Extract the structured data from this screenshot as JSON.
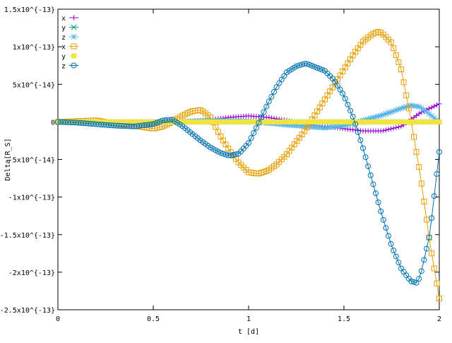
{
  "chart_data": {
    "type": "line",
    "title": "",
    "xlabel": "t [d]",
    "ylabel": "Delta[R_S]",
    "xlim": [
      0,
      2
    ],
    "ylim": [
      -2.5e-13,
      1.5e-13
    ],
    "grid": false,
    "legend_position": "top-left",
    "xticks": [
      {
        "value": 0,
        "label": "0"
      },
      {
        "value": 0.5,
        "label": "0.5"
      },
      {
        "value": 1,
        "label": "1"
      },
      {
        "value": 1.5,
        "label": "1.5"
      },
      {
        "value": 2,
        "label": "2"
      }
    ],
    "yticks": [
      {
        "value": 1.5e-13,
        "label": "1.5x10^{-13}"
      },
      {
        "value": 1e-13,
        "label": "1x10^{-13}"
      },
      {
        "value": 5e-14,
        "label": "5x10^{-14}"
      },
      {
        "value": 0,
        "label": "0"
      },
      {
        "value": -5e-14,
        "label": "-5x10^{-14}"
      },
      {
        "value": -1e-13,
        "label": "-1x10^{-13}"
      },
      {
        "value": -1.5e-13,
        "label": "-1.5x10^{-13}"
      },
      {
        "value": -2e-13,
        "label": "-2x10^{-13}"
      },
      {
        "value": -2.5e-13,
        "label": "-2.5x10^{-13}"
      }
    ],
    "series": [
      {
        "name": "x",
        "color": "#9400d3",
        "marker": "plus",
        "x": [
          0,
          0.2,
          0.4,
          0.6,
          0.7,
          0.8,
          0.9,
          1.0,
          1.1,
          1.2,
          1.3,
          1.4,
          1.5,
          1.6,
          1.7,
          1.8,
          1.9,
          2.0
        ],
        "y": [
          0,
          0,
          0,
          0,
          1e-15,
          3e-15,
          6e-15,
          8e-15,
          6e-15,
          2e-15,
          -3e-15,
          -6e-15,
          -9e-15,
          -1.2e-14,
          -1.2e-14,
          -6e-15,
          1.2e-14,
          2.4e-14
        ]
      },
      {
        "name": "y",
        "color": "#009e73",
        "marker": "cross",
        "x": [
          0,
          0.5,
          1.0,
          1.5,
          2.0
        ],
        "y": [
          0,
          0,
          0,
          0,
          0
        ]
      },
      {
        "name": "z",
        "color": "#56b4e9",
        "marker": "star",
        "x": [
          0,
          0.3,
          0.6,
          0.8,
          1.0,
          1.2,
          1.4,
          1.5,
          1.6,
          1.7,
          1.8,
          1.85,
          1.9,
          1.95,
          2.0
        ],
        "y": [
          0,
          0,
          0,
          2e-15,
          1e-15,
          -4e-15,
          -8e-15,
          -5e-15,
          2e-15,
          9e-15,
          1.8e-14,
          2.2e-14,
          2e-14,
          1e-14,
          0
        ]
      },
      {
        "name": "x",
        "color": "#e69f00",
        "marker": "open-square",
        "x": [
          0,
          0.1,
          0.2,
          0.3,
          0.4,
          0.5,
          0.55,
          0.6,
          0.65,
          0.7,
          0.75,
          0.8,
          0.85,
          0.9,
          0.95,
          1.0,
          1.05,
          1.1,
          1.15,
          1.2,
          1.3,
          1.4,
          1.5,
          1.55,
          1.6,
          1.65,
          1.68,
          1.7,
          1.75,
          1.8,
          1.85,
          1.9,
          1.95,
          2.0
        ],
        "y": [
          0,
          1e-15,
          2e-15,
          -2e-15,
          -5e-15,
          -9e-15,
          -6e-15,
          0,
          8e-15,
          1.4e-14,
          1.6e-14,
          6e-15,
          -1.8e-14,
          -3.8e-14,
          -5.5e-14,
          -6.7e-14,
          -6.9e-14,
          -6.5e-14,
          -5.6e-14,
          -4.3e-14,
          -1e-14,
          3e-14,
          7e-14,
          9e-14,
          1.07e-13,
          1.17e-13,
          1.2e-13,
          1.18e-13,
          1.05e-13,
          7e-14,
          5e-15,
          -7e-14,
          -1.6e-13,
          -2.35e-13
        ]
      },
      {
        "name": "y",
        "color": "#f0e442",
        "marker": "filled-square",
        "x": [
          0,
          0.5,
          1.0,
          1.5,
          2.0
        ],
        "y": [
          0,
          0,
          0,
          0,
          0
        ]
      },
      {
        "name": "z",
        "color": "#0072b2",
        "marker": "open-circle",
        "x": [
          0,
          0.1,
          0.2,
          0.3,
          0.4,
          0.5,
          0.55,
          0.6,
          0.65,
          0.7,
          0.75,
          0.8,
          0.85,
          0.9,
          0.95,
          1.0,
          1.05,
          1.1,
          1.15,
          1.2,
          1.25,
          1.3,
          1.35,
          1.4,
          1.45,
          1.5,
          1.55,
          1.6,
          1.65,
          1.7,
          1.75,
          1.8,
          1.85,
          1.88,
          1.9,
          1.95,
          2.0
        ],
        "y": [
          0,
          -1e-15,
          -3e-15,
          -5e-15,
          -6e-15,
          -3e-15,
          2e-15,
          3e-15,
          -5e-15,
          -1.5e-14,
          -2.5e-14,
          -3.4e-14,
          -4.1e-14,
          -4.5e-14,
          -4.2e-14,
          -2.8e-14,
          -3e-15,
          2.4e-14,
          4.8e-14,
          6.6e-14,
          7.4e-14,
          7.8e-14,
          7.3e-14,
          6.8e-14,
          5.5e-14,
          3.5e-14,
          5e-15,
          -3.5e-14,
          -8e-14,
          -1.25e-13,
          -1.65e-13,
          -1.95e-13,
          -2.12e-13,
          -2.14e-13,
          -2.06e-13,
          -1.5e-13,
          -4e-14
        ]
      }
    ]
  }
}
